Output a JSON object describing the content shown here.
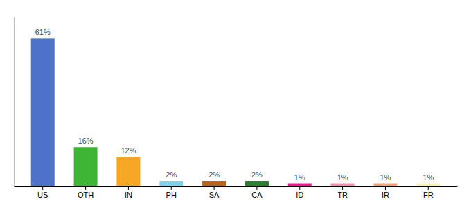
{
  "chart_data": {
    "type": "bar",
    "categories": [
      "US",
      "OTH",
      "IN",
      "PH",
      "SA",
      "CA",
      "ID",
      "TR",
      "IR",
      "FR"
    ],
    "values": [
      61,
      16,
      12,
      2,
      2,
      2,
      1,
      1,
      1,
      1
    ],
    "value_labels": [
      "61%",
      "16%",
      "12%",
      "2%",
      "2%",
      "2%",
      "1%",
      "1%",
      "1%",
      "1%"
    ],
    "colors": [
      "#4d72c8",
      "#3db534",
      "#f5a623",
      "#87ceeb",
      "#b5651d",
      "#2e7d32",
      "#e91e8c",
      "#f48fb1",
      "#f4a080",
      "#f5f0c0"
    ],
    "ylim": [
      0,
      70
    ],
    "data_labels": true,
    "tick_labels": "x",
    "grid": false
  }
}
